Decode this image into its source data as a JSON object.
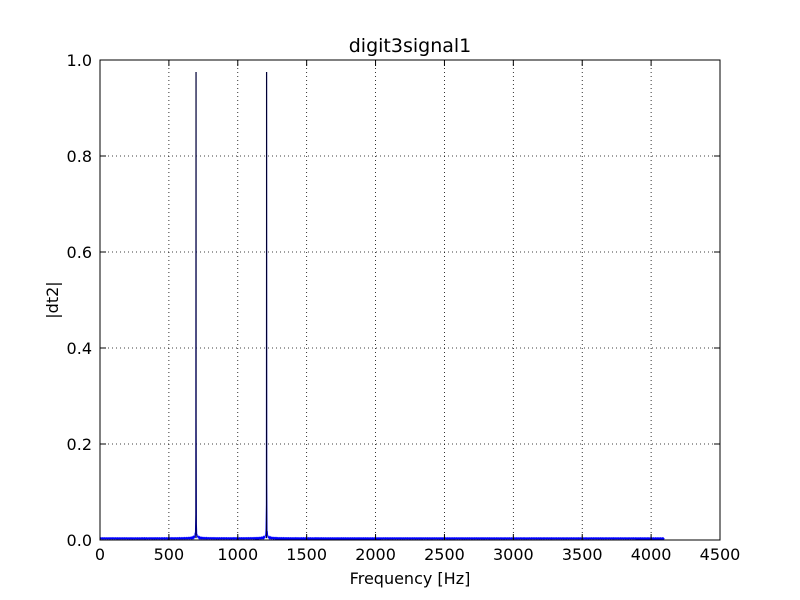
{
  "chart_data": {
    "type": "line",
    "title": "digit3signal1",
    "xlabel": "Frequency [Hz]",
    "ylabel": "|dt2|",
    "xlim": [
      0,
      4500
    ],
    "ylim": [
      0,
      1.0
    ],
    "x_ticks": [
      0,
      500,
      1000,
      1500,
      2000,
      2500,
      3000,
      3500,
      4000,
      4500
    ],
    "x_tick_labels": [
      "0",
      "500",
      "1000",
      "1500",
      "2000",
      "2500",
      "3000",
      "3500",
      "4000",
      "4500"
    ],
    "y_ticks": [
      0.0,
      0.2,
      0.4,
      0.6,
      0.8,
      1.0
    ],
    "y_tick_labels": [
      "0.0",
      "0.2",
      "0.4",
      "0.6",
      "0.8",
      "1.0"
    ],
    "grid": true,
    "series": [
      {
        "color": "#0000ff",
        "data_extent_hz": [
          0,
          4096
        ],
        "baseline": 0.004,
        "peaks": [
          {
            "frequency": 697,
            "magnitude": 0.975
          },
          {
            "frequency": 1209,
            "magnitude": 0.975
          }
        ]
      }
    ]
  }
}
